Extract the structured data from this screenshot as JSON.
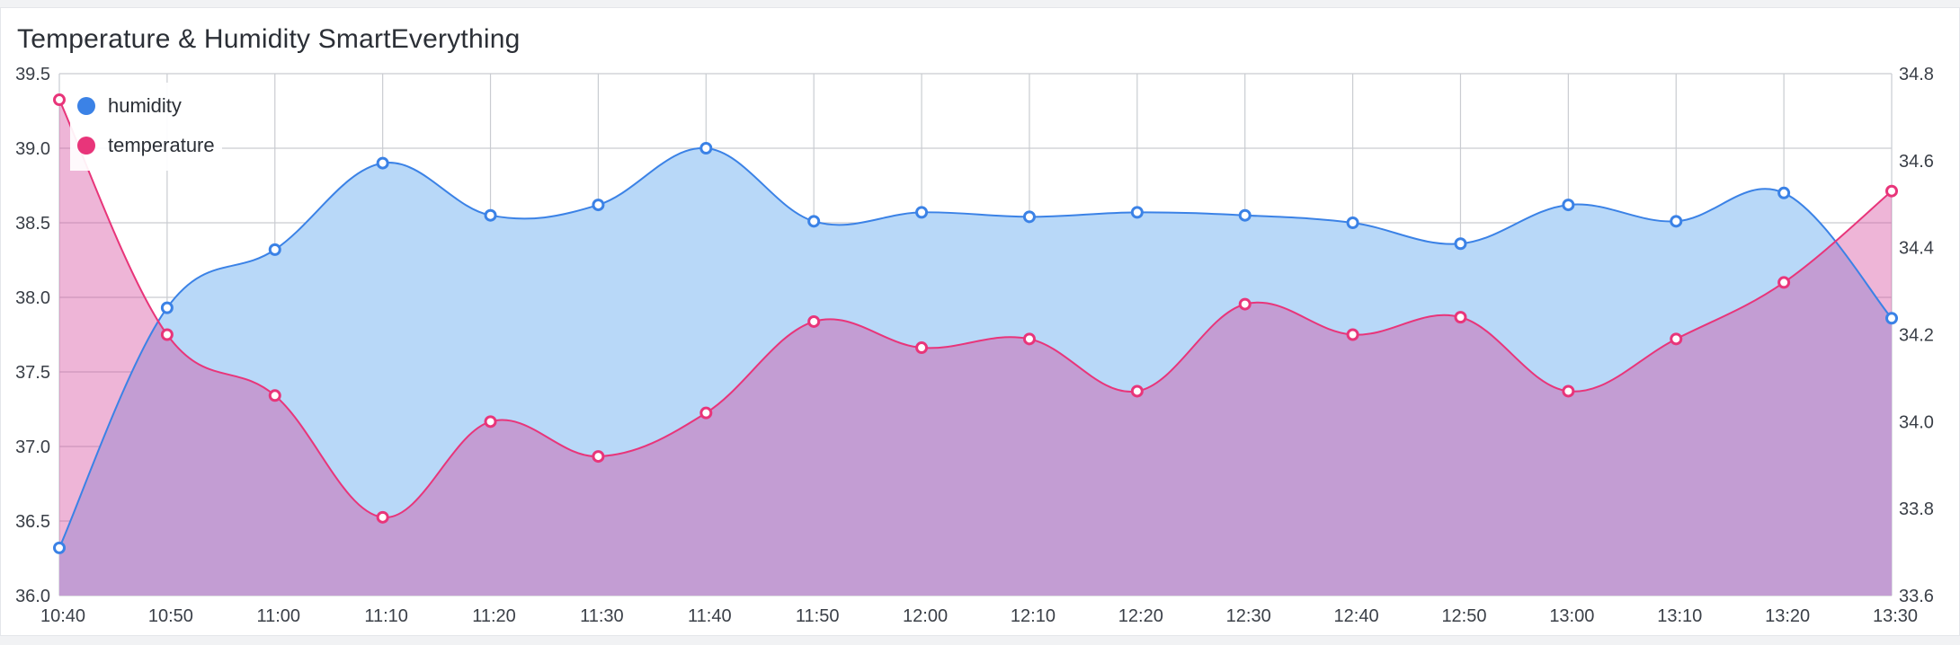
{
  "card": {
    "title": "Temperature & Humidity SmartEverything"
  },
  "colors": {
    "humidity": "#3b82e6",
    "temperature": "#e8357a"
  },
  "chart_data": {
    "type": "area",
    "title": "Temperature & Humidity SmartEverything",
    "x": [
      "10:40",
      "10:50",
      "11:00",
      "11:10",
      "11:20",
      "11:30",
      "11:40",
      "11:50",
      "12:00",
      "12:10",
      "12:20",
      "12:30",
      "12:40",
      "12:50",
      "13:00",
      "13:10",
      "13:20",
      "13:30"
    ],
    "x_tick_labels": [
      "10:40",
      "10:50",
      "11:00",
      "11:10",
      "11:20",
      "11:30",
      "11:40",
      "11:50",
      "12:00",
      "12:10",
      "12:20",
      "12:30",
      "12:40",
      "12:50",
      "13:00",
      "13:10",
      "13:20",
      "13:30"
    ],
    "grid": true,
    "legend_position": "top-left",
    "left_axis": {
      "ylim": [
        36.0,
        39.5
      ],
      "ticks": [
        "36.0",
        "36.5",
        "37.0",
        "37.5",
        "38.0",
        "38.5",
        "39.0",
        "39.5"
      ]
    },
    "right_axis": {
      "ylim": [
        33.6,
        34.8
      ],
      "ticks": [
        "33.6",
        "33.8",
        "34.0",
        "34.2",
        "34.4",
        "34.6",
        "34.8"
      ]
    },
    "series": [
      {
        "name": "humidity",
        "axis": "left",
        "color": "#3b82e6",
        "fill": "#b8d8f8",
        "values": [
          36.32,
          37.93,
          38.32,
          38.9,
          38.55,
          38.62,
          39.0,
          38.51,
          38.57,
          38.54,
          38.57,
          38.55,
          38.5,
          38.36,
          38.62,
          38.51,
          38.7,
          37.86
        ]
      },
      {
        "name": "temperature",
        "axis": "right",
        "color": "#e8357a",
        "fill": "#f0b6d5",
        "values": [
          34.74,
          34.2,
          34.06,
          33.78,
          34.0,
          33.92,
          34.02,
          34.23,
          34.17,
          34.19,
          34.07,
          34.27,
          34.2,
          34.24,
          34.07,
          34.19,
          34.32,
          34.53
        ]
      }
    ]
  }
}
